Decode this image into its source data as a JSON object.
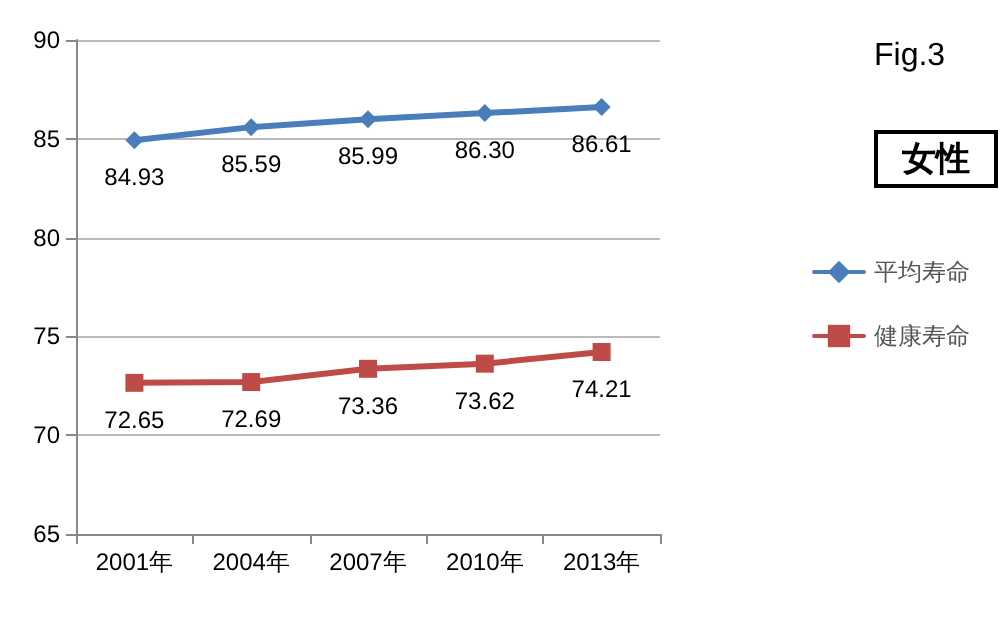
{
  "chart_data": {
    "type": "line",
    "categories": [
      "2001年",
      "2004年",
      "2007年",
      "2010年",
      "2013年"
    ],
    "series": [
      {
        "name": "平均寿命",
        "color": "#4a7ebb",
        "marker": "diamond",
        "values": [
          84.93,
          85.59,
          85.99,
          86.3,
          86.61
        ],
        "value_labels": [
          "84.93",
          "85.59",
          "85.99",
          "86.30",
          "86.61"
        ]
      },
      {
        "name": "健康寿命",
        "color": "#be4b48",
        "marker": "square",
        "values": [
          72.65,
          72.69,
          73.36,
          73.62,
          74.21
        ],
        "value_labels": [
          "72.65",
          "72.69",
          "73.36",
          "73.62",
          "74.21"
        ]
      }
    ],
    "ylim": [
      65,
      90
    ],
    "yticks": [
      65,
      70,
      75,
      80,
      85,
      90
    ],
    "grid": "y",
    "legend": "right",
    "annotations": [
      "Fig.3",
      "女性"
    ]
  }
}
